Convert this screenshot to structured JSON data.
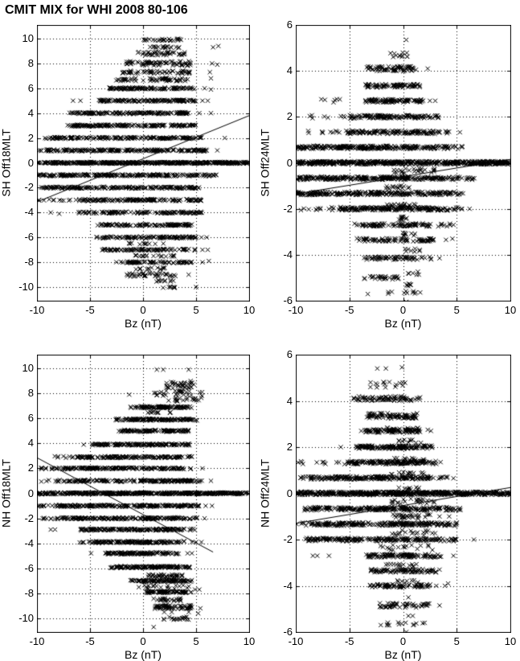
{
  "title": "CMIT MIX for WHI 2008 80-106",
  "marker_color": "#000000",
  "background_color": "#ffffff",
  "chart_data": [
    {
      "type": "scatter",
      "position": "top-left",
      "ylabel": "SH Off18MLT",
      "xlabel": "Bz (nT)",
      "marker": "x",
      "grid": "dotted",
      "xlim": [
        -10,
        10
      ],
      "ylim": [
        -11.1,
        11.1
      ],
      "xticks": [
        -10,
        -5,
        0,
        5,
        10
      ],
      "yticks": [
        10,
        8,
        6,
        4,
        2,
        0,
        -2,
        -4,
        -6,
        -8,
        -10
      ],
      "fit_line": {
        "x1": -10,
        "y1": -3.15,
        "x2": 10,
        "y2": 3.8
      },
      "bands": [
        [
          9.9,
          0.0,
          3.6,
          25
        ],
        [
          9.3,
          0.6,
          3.4,
          18
        ],
        [
          8.8,
          -0.5,
          4.0,
          40,
          0.15
        ],
        [
          8.0,
          -1.6,
          4.6,
          70,
          0.18
        ],
        [
          7.3,
          -2.0,
          4.6,
          55,
          0.12
        ],
        [
          6.7,
          -2.6,
          4.3,
          60,
          0.12
        ],
        [
          6.0,
          -3.2,
          5.0,
          110
        ],
        [
          5.0,
          -4.2,
          5.0,
          130
        ],
        [
          4.0,
          -7.0,
          4.3,
          150
        ],
        [
          3.0,
          -7.2,
          5.0,
          160
        ],
        [
          2.0,
          -9.4,
          5.6,
          170
        ],
        [
          1.0,
          -10,
          6.0,
          200
        ],
        [
          0.0,
          -10,
          10,
          420
        ],
        [
          -1.0,
          -10,
          7.0,
          220
        ],
        [
          -2.0,
          -9.6,
          5.3,
          180
        ],
        [
          -3.0,
          -10,
          -5.8,
          14
        ],
        [
          -3.0,
          -5.8,
          5.5,
          150
        ],
        [
          -4.0,
          -6.2,
          5.6,
          120
        ],
        [
          -5.0,
          -4.3,
          4.6,
          110
        ],
        [
          -6.0,
          -4.4,
          5.0,
          110
        ],
        [
          -6.5,
          -1.5,
          2.0,
          12
        ],
        [
          -7.0,
          -3.9,
          5.0,
          90
        ],
        [
          -7.5,
          -1.0,
          3.0,
          18
        ],
        [
          -8.0,
          -2.6,
          4.9,
          70
        ],
        [
          -8.5,
          -1.0,
          2.2,
          14
        ],
        [
          -9.0,
          -1.6,
          3.1,
          40,
          0.15
        ],
        [
          -9.5,
          0.5,
          3.0,
          10
        ],
        [
          -10.0,
          1.8,
          3.2,
          8
        ]
      ],
      "points": [
        [
          6.6,
          9.3
        ],
        [
          7.1,
          9.4
        ],
        [
          6.5,
          8.0
        ],
        [
          7.0,
          7.9
        ],
        [
          6.3,
          7.3
        ],
        [
          6.4,
          6.8
        ],
        [
          5.8,
          6.0
        ],
        [
          6.4,
          5.9
        ],
        [
          -6.6,
          5.0
        ],
        [
          -5.9,
          5.0
        ],
        [
          5.6,
          5.0
        ],
        [
          6.1,
          5.0
        ],
        [
          5.3,
          4.0
        ],
        [
          6.4,
          4.0
        ],
        [
          -8.2,
          2.0
        ],
        [
          -7.6,
          2.0
        ],
        [
          7.7,
          2.0
        ],
        [
          7.0,
          1.0
        ],
        [
          -8.7,
          -4.0
        ],
        [
          -7.9,
          -4.1
        ],
        [
          5.5,
          -6.0
        ],
        [
          6.0,
          -6.0
        ],
        [
          5.6,
          -7.0
        ],
        [
          6.1,
          -7.0
        ],
        [
          5.6,
          -8.0
        ],
        [
          6.2,
          -7.9
        ],
        [
          4.3,
          -9.0
        ],
        [
          5.0,
          -10.0
        ]
      ]
    },
    {
      "type": "scatter",
      "position": "top-right",
      "ylabel": "SH Off24MLT",
      "xlabel": "Bz (nT)",
      "marker": "x",
      "grid": "dotted",
      "xlim": [
        -10,
        10
      ],
      "ylim": [
        -6,
        6
      ],
      "xticks": [
        -10,
        -5,
        0,
        5,
        10
      ],
      "yticks": [
        6,
        4,
        2,
        0,
        -2,
        -4,
        -6
      ],
      "fit_line": {
        "x1": -10,
        "y1": -1.35,
        "x2": 10,
        "y2": 0.15
      },
      "bands": [
        [
          4.7,
          -1.3,
          0.4,
          12,
          0.12
        ],
        [
          4.1,
          -3.4,
          1.3,
          70,
          0.12
        ],
        [
          3.35,
          -3.5,
          1.6,
          80
        ],
        [
          2.7,
          -7.7,
          -5.5,
          6
        ],
        [
          2.7,
          -3.6,
          2.0,
          90
        ],
        [
          2.0,
          -9.5,
          -5.0,
          8
        ],
        [
          2.0,
          -5.0,
          2.1,
          110
        ],
        [
          2.0,
          2.1,
          3.3,
          12
        ],
        [
          1.33,
          -9.7,
          -5.3,
          10
        ],
        [
          1.33,
          -5.3,
          2.6,
          120
        ],
        [
          1.33,
          2.6,
          4.8,
          15
        ],
        [
          0.67,
          -10,
          4.3,
          260
        ],
        [
          0.67,
          4.3,
          5.6,
          8
        ],
        [
          0.0,
          -10,
          10,
          500
        ],
        [
          -0.35,
          -1.0,
          3.0,
          25,
          0.12
        ],
        [
          -0.67,
          -10,
          5.2,
          260
        ],
        [
          -0.67,
          5.2,
          6.8,
          10
        ],
        [
          -1.05,
          -1.6,
          0.6,
          15
        ],
        [
          -1.33,
          -10,
          4.6,
          240
        ],
        [
          -1.33,
          4.6,
          5.6,
          8
        ],
        [
          -1.85,
          -1.6,
          1.6,
          18
        ],
        [
          -2.0,
          -10,
          -6.0,
          12
        ],
        [
          -2.0,
          -6.0,
          4.1,
          180
        ],
        [
          -2.0,
          4.1,
          5.5,
          10
        ],
        [
          -2.4,
          -0.6,
          0.7,
          10
        ],
        [
          -2.7,
          -4.6,
          2.6,
          90
        ],
        [
          -2.7,
          2.6,
          4.6,
          8
        ],
        [
          -3.1,
          -0.2,
          1.1,
          10
        ],
        [
          -3.35,
          -4.4,
          2.9,
          80
        ],
        [
          -3.8,
          0.0,
          1.6,
          8
        ],
        [
          -4.15,
          -3.8,
          1.6,
          55
        ],
        [
          -4.15,
          1.6,
          3.0,
          6
        ],
        [
          -4.8,
          0.4,
          1.6,
          6
        ],
        [
          -5.0,
          -3.6,
          0.6,
          30
        ],
        [
          -5.3,
          0.3,
          1.2,
          8
        ],
        [
          -5.65,
          -3.3,
          1.6,
          12
        ]
      ],
      "points": [
        [
          0.3,
          5.35
        ],
        [
          2.3,
          4.1
        ],
        [
          2.5,
          2.7
        ],
        [
          3.0,
          2.7
        ],
        [
          5.3,
          1.33
        ],
        [
          6.5,
          -0.67
        ],
        [
          4.7,
          -2.0
        ],
        [
          6.2,
          -2.0
        ],
        [
          4.7,
          -2.7
        ],
        [
          4.0,
          -3.35
        ],
        [
          4.6,
          -3.3
        ],
        [
          3.4,
          -4.15
        ],
        [
          0.3,
          -6.05
        ]
      ]
    },
    {
      "type": "scatter",
      "position": "bottom-left",
      "ylabel": "NH Off18MLT",
      "xlabel": "Bz (nT)",
      "marker": "x",
      "grid": "dotted",
      "xlim": [
        -10,
        10
      ],
      "ylim": [
        -11.1,
        11.1
      ],
      "xticks": [
        -10,
        -5,
        0,
        5,
        10
      ],
      "yticks": [
        10,
        8,
        6,
        4,
        2,
        0,
        -2,
        -4,
        -6,
        -8,
        -10
      ],
      "fit_line": {
        "x1": -10,
        "y1": 2.85,
        "x2": 6.6,
        "y2": -4.7
      },
      "bands": [
        [
          8.7,
          2.0,
          4.8,
          35,
          0.3
        ],
        [
          8.0,
          1.0,
          5.6,
          30,
          0.2
        ],
        [
          7.5,
          2.0,
          5.6,
          20,
          0.15
        ],
        [
          6.9,
          -1.2,
          4.1,
          90
        ],
        [
          6.9,
          4.1,
          4.7,
          5
        ],
        [
          6.5,
          0.4,
          2.6,
          12
        ],
        [
          5.9,
          -2.6,
          4.6,
          120
        ],
        [
          5.9,
          4.6,
          5.3,
          4
        ],
        [
          5.0,
          -2.3,
          4.3,
          110
        ],
        [
          3.9,
          -4.8,
          4.1,
          140
        ],
        [
          3.9,
          4.1,
          4.9,
          6
        ],
        [
          2.9,
          -8.6,
          -6.2,
          8
        ],
        [
          2.9,
          -6.2,
          3.6,
          140
        ],
        [
          2.9,
          3.6,
          4.6,
          8
        ],
        [
          2.0,
          -10,
          -8.2,
          8
        ],
        [
          2.0,
          -8.2,
          3.4,
          150
        ],
        [
          2.0,
          3.4,
          4.6,
          10
        ],
        [
          1.0,
          -9.6,
          -7.6,
          8
        ],
        [
          1.0,
          -7.6,
          4.6,
          170
        ],
        [
          1.0,
          4.6,
          5.6,
          8
        ],
        [
          0.0,
          -10,
          10,
          420
        ],
        [
          -1.0,
          -10,
          -8.2,
          10
        ],
        [
          -1.0,
          -8.2,
          4.6,
          200
        ],
        [
          -1.0,
          4.6,
          5.4,
          8
        ],
        [
          -2.0,
          -9.6,
          -7.8,
          10
        ],
        [
          -2.0,
          -7.8,
          4.1,
          170
        ],
        [
          -2.0,
          4.1,
          5.2,
          8
        ],
        [
          -2.9,
          -6.0,
          4.1,
          150
        ],
        [
          -2.9,
          4.1,
          4.9,
          5
        ],
        [
          -3.9,
          -6.2,
          -4.6,
          8
        ],
        [
          -3.9,
          -4.6,
          3.2,
          130
        ],
        [
          -3.9,
          3.2,
          4.2,
          8
        ],
        [
          -4.8,
          -3.6,
          3.4,
          110
        ],
        [
          -5.9,
          -3.1,
          4.4,
          130
        ],
        [
          -6.6,
          0.4,
          3.8,
          40,
          0.12
        ],
        [
          -7.0,
          -1.2,
          4.0,
          90
        ],
        [
          -7.0,
          4.0,
          4.8,
          6
        ],
        [
          -7.5,
          -0.4,
          4.6,
          20,
          0.15
        ],
        [
          -7.9,
          0.2,
          4.6,
          80
        ],
        [
          -8.5,
          0.9,
          3.6,
          25,
          0.12
        ],
        [
          -9.1,
          1.0,
          4.6,
          60,
          0.15
        ],
        [
          -10.0,
          1.8,
          4.3,
          18,
          0.12
        ]
      ],
      "points": [
        [
          1.3,
          9.9
        ],
        [
          1.9,
          9.9
        ],
        [
          4.3,
          9.9
        ],
        [
          -1.3,
          7.9
        ],
        [
          -5.6,
          3.9
        ],
        [
          5.6,
          2.0
        ],
        [
          6.4,
          1.0
        ],
        [
          5.9,
          -1.0
        ],
        [
          6.5,
          -1.0
        ],
        [
          5.8,
          -2.0
        ],
        [
          -8.7,
          -2.9
        ],
        [
          -8.3,
          -2.9
        ],
        [
          4.6,
          -3.9
        ],
        [
          5.0,
          -3.9
        ],
        [
          5.5,
          -3.9
        ],
        [
          -4.9,
          -4.8
        ],
        [
          4.2,
          -4.8
        ],
        [
          4.6,
          -4.8
        ],
        [
          4.9,
          -7.7
        ],
        [
          5.3,
          -7.7
        ],
        [
          4.6,
          -9.1
        ],
        [
          5.4,
          -9.2
        ],
        [
          2.0,
          -9.5
        ],
        [
          2.7,
          -9.5
        ],
        [
          4.3,
          -9.5
        ],
        [
          5.2,
          -9.6
        ],
        [
          1.0,
          -10.7
        ]
      ]
    },
    {
      "type": "scatter",
      "position": "bottom-right",
      "ylabel": "NH Off24MLT",
      "xlabel": "Bz (nT)",
      "marker": "x",
      "grid": "dotted",
      "xlim": [
        -10,
        10
      ],
      "ylim": [
        -6,
        6
      ],
      "xticks": [
        -10,
        -5,
        0,
        5,
        10
      ],
      "yticks": [
        6,
        4,
        2,
        0,
        -2,
        -4,
        -6
      ],
      "fit_line": {
        "x1": -10,
        "y1": -1.3,
        "x2": 10,
        "y2": 0.25
      },
      "bands": [
        [
          4.7,
          -3.4,
          0.5,
          16,
          0.12
        ],
        [
          4.1,
          -4.6,
          0.8,
          70,
          0.1
        ],
        [
          4.1,
          0.8,
          1.6,
          5
        ],
        [
          3.35,
          -3.4,
          1.4,
          85,
          0.12
        ],
        [
          2.8,
          -1.6,
          1.6,
          14
        ],
        [
          2.7,
          -3.6,
          1.6,
          90
        ],
        [
          2.25,
          -0.6,
          1.9,
          10
        ],
        [
          2.0,
          -4.4,
          2.1,
          130
        ],
        [
          2.0,
          2.1,
          2.9,
          8
        ],
        [
          1.5,
          -0.8,
          2.1,
          12
        ],
        [
          1.33,
          -10,
          -5.2,
          12
        ],
        [
          1.33,
          -5.2,
          2.3,
          150
        ],
        [
          1.33,
          2.3,
          3.1,
          8
        ],
        [
          0.85,
          -1.1,
          2.3,
          14
        ],
        [
          0.67,
          -9.6,
          2.6,
          200
        ],
        [
          0.67,
          2.6,
          4.3,
          10
        ],
        [
          0.2,
          -0.6,
          1.6,
          10
        ],
        [
          0.0,
          -10,
          10,
          500
        ],
        [
          -0.35,
          -1.1,
          3.1,
          25,
          0.12
        ],
        [
          -0.67,
          -9.2,
          5.0,
          230
        ],
        [
          -0.67,
          5.0,
          5.4,
          4
        ],
        [
          -1.0,
          -1.1,
          2.6,
          30,
          0.1
        ],
        [
          -1.33,
          -10,
          -8.6,
          6
        ],
        [
          -1.33,
          -8.6,
          4.4,
          220
        ],
        [
          -1.33,
          4.4,
          5.1,
          6
        ],
        [
          -1.7,
          -1.3,
          3.1,
          20,
          0.12
        ],
        [
          -2.0,
          -9.1,
          5.0,
          200
        ],
        [
          -2.35,
          -2.6,
          2.8,
          18,
          0.12
        ],
        [
          -2.7,
          -3.6,
          3.6,
          110
        ],
        [
          -3.1,
          -1.6,
          1.4,
          14
        ],
        [
          -3.35,
          -3.1,
          3.1,
          90
        ],
        [
          -3.8,
          -0.6,
          1.4,
          8
        ],
        [
          -4.0,
          -3.1,
          2.6,
          70
        ],
        [
          -4.85,
          -2.3,
          2.6,
          50,
          0.1
        ],
        [
          -5.65,
          -2.1,
          2.4,
          14
        ]
      ],
      "points": [
        [
          -2.4,
          5.4
        ],
        [
          -1.6,
          5.4
        ],
        [
          -0.1,
          5.45
        ],
        [
          -3.9,
          2.7
        ],
        [
          2.3,
          2.75
        ],
        [
          2.6,
          2.7
        ],
        [
          -5.8,
          2.0
        ],
        [
          3.5,
          1.35
        ],
        [
          4.7,
          0.65
        ],
        [
          3.4,
          -1.0
        ],
        [
          4.3,
          -1.0
        ],
        [
          6.6,
          -2.0
        ],
        [
          -8.4,
          -2.7
        ],
        [
          -8.0,
          -2.7
        ],
        [
          -6.9,
          -2.7
        ],
        [
          4.7,
          -2.7
        ],
        [
          3.4,
          -3.3
        ],
        [
          3.1,
          -4.0
        ],
        [
          3.9,
          -4.0
        ],
        [
          4.2,
          -3.9
        ],
        [
          0.5,
          -4.5
        ],
        [
          3.4,
          -4.85
        ],
        [
          0.5,
          -5.3
        ],
        [
          0.9,
          -5.3
        ],
        [
          0.3,
          -6.0
        ]
      ]
    }
  ]
}
